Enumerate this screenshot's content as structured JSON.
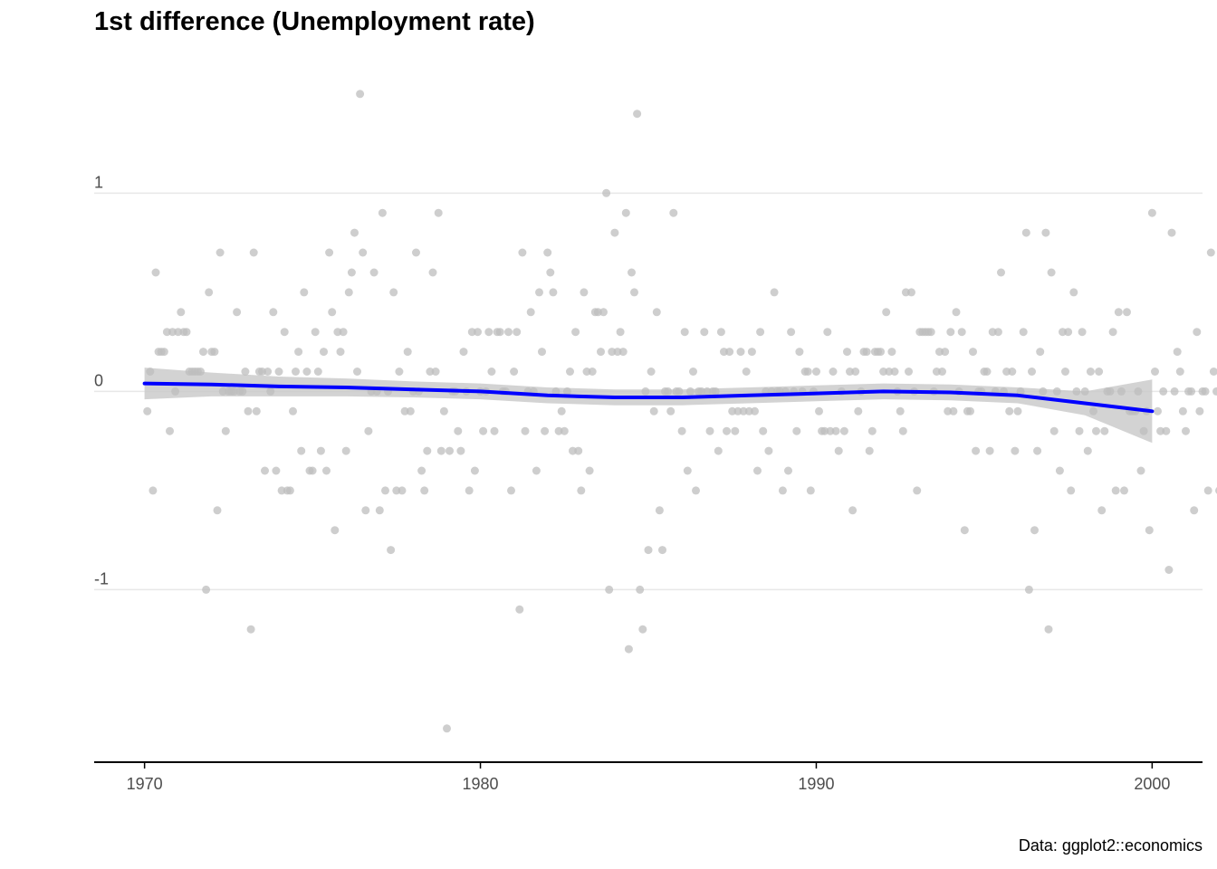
{
  "chart_data": {
    "type": "scatter",
    "title": "1st difference (Unemployment rate)",
    "caption": "Data: ggplot2::economics",
    "xlabel": "",
    "ylabel": "",
    "xlim": [
      1968.5,
      2001.5
    ],
    "ylim": [
      -1.87,
      1.7
    ],
    "x_ticks": [
      1970,
      1980,
      1990,
      2000
    ],
    "y_ticks": [
      -1,
      0,
      1
    ],
    "grid": "horizontal major only",
    "colors": {
      "points": "#bebebe",
      "smooth": "#0000ff",
      "ribbon": "#c8c8c8",
      "grid": "#e8e8e8",
      "axis": "#000000"
    },
    "points_start": 1970.0833,
    "points_step": 0.0833333,
    "points": [
      -0.1,
      0.1,
      -0.5,
      0.6,
      0.2,
      0.2,
      0.2,
      0.3,
      -0.2,
      0.3,
      0,
      0.3,
      0.4,
      0.3,
      0.3,
      0.1,
      0.1,
      0.1,
      0.1,
      0.1,
      0.2,
      -1,
      0.5,
      0.2,
      0.2,
      -0.6,
      0.7,
      0,
      -0.2,
      0,
      0,
      0,
      0.4,
      0,
      0,
      0.1,
      -0.1,
      -1.2,
      0.7,
      -0.1,
      0.1,
      0.1,
      -0.4,
      0.1,
      0,
      0.4,
      -0.4,
      0.1,
      -0.5,
      0.3,
      -0.5,
      -0.5,
      -0.1,
      0.1,
      0.2,
      -0.3,
      0.5,
      0.1,
      -0.4,
      -0.4,
      0.3,
      0.1,
      -0.3,
      0.2,
      -0.4,
      0.7,
      0.4,
      -0.7,
      0.3,
      0.2,
      0.3,
      -0.3,
      0.5,
      0.6,
      0.8,
      0.1,
      1.5,
      0.7,
      -0.6,
      -0.2,
      0,
      0.6,
      0,
      -0.6,
      0.9,
      -0.5,
      0,
      -0.8,
      0.5,
      -0.5,
      0.1,
      -0.5,
      -0.1,
      0.2,
      -0.1,
      0,
      0.7,
      0,
      -0.4,
      -0.5,
      -0.3,
      0.1,
      0.6,
      0.1,
      0.9,
      -0.3,
      -0.1,
      -1.7,
      -0.3,
      0,
      0,
      -0.2,
      -0.3,
      0.2,
      0,
      -0.5,
      0.3,
      -0.4,
      0.3,
      0,
      -0.2,
      0,
      0.3,
      0.1,
      -0.2,
      0.3,
      0.3,
      0,
      0,
      0.3,
      -0.5,
      0.1,
      0.3,
      -1.1,
      0.7,
      -0.2,
      0,
      0.4,
      0,
      -0.4,
      0.5,
      0.2,
      -0.2,
      0.7,
      0.6,
      0.5,
      0,
      -0.2,
      -0.1,
      -0.2,
      0,
      0.1,
      -0.3,
      0.3,
      -0.3,
      -0.5,
      0.5,
      0.1,
      -0.4,
      0.1,
      0.4,
      0.4,
      0.2,
      0.4,
      1,
      -1,
      0.2,
      0.8,
      0.2,
      0.3,
      0.2,
      0.9,
      -1.3,
      0.6,
      0.5,
      1.4,
      -1,
      -1.2,
      0,
      -0.8,
      0.1,
      -0.1,
      0.4,
      -0.6,
      -0.8,
      0,
      0,
      -0.1,
      0.9,
      0,
      0,
      -0.2,
      0.3,
      -0.4,
      0,
      0.1,
      -0.5,
      0,
      0,
      0.3,
      0,
      -0.2,
      0,
      0,
      -0.3,
      0.3,
      0.2,
      -0.2,
      0.2,
      -0.1,
      -0.2,
      -0.1,
      0.2,
      -0.1,
      0.1,
      -0.1,
      0.2,
      -0.1,
      -0.4,
      0.3,
      -0.2,
      0,
      -0.3,
      0,
      0.5,
      0,
      0,
      -0.5,
      0,
      -0.4,
      0.3,
      0,
      -0.2,
      0.2,
      0,
      0.1,
      0.1,
      -0.5,
      0,
      0.1,
      -0.1,
      -0.2,
      -0.2,
      0.3,
      -0.2,
      0.1,
      -0.2,
      -0.3,
      0,
      -0.2,
      0.2,
      0.1,
      -0.6,
      0.1,
      -0.1,
      0,
      0.2,
      0.2,
      -0.3,
      -0.2,
      0.2,
      0.2,
      0.2,
      0.1,
      0.4,
      0.1,
      0.2,
      0.1,
      0,
      -0.1,
      -0.2,
      0.5,
      0.1,
      0.5,
      0,
      -0.5,
      0.3,
      0.3,
      0.3,
      0.3,
      0.3,
      0,
      0.1,
      0.2,
      0.1,
      0.2,
      -0.1,
      0.3,
      -0.1,
      0.4,
      0,
      0.3,
      -0.7,
      -0.1,
      -0.1,
      0.2,
      -0.3,
      0,
      0,
      0.1,
      0.1,
      -0.3,
      0.3,
      0,
      0.3,
      0.6,
      0,
      0.1,
      -0.1,
      0.1,
      -0.3,
      -0.1,
      0,
      0.3,
      0.8,
      -1,
      0.1,
      -0.7,
      -0.3,
      0.2,
      0,
      0.8,
      -1.2,
      0.6,
      -0.2,
      0,
      -0.4,
      0.3,
      0.1,
      0.3,
      -0.5,
      0.5,
      0,
      -0.2,
      0.3,
      0,
      -0.3,
      0.1,
      -0.1,
      -0.2,
      0.1,
      -0.6,
      -0.2,
      0,
      0,
      0.3,
      -0.5,
      0.4,
      0,
      -0.5,
      0.4,
      -0.1,
      -0.1,
      -0.1,
      0,
      -0.4,
      -0.2,
      -0.1,
      -0.7,
      0.9,
      0.1,
      -0.1,
      -0.2,
      0,
      -0.2,
      -0.9,
      0.8,
      0,
      0.2,
      0.1,
      -0.1,
      -0.2,
      0,
      0,
      -0.6,
      0.3,
      -0.1,
      0,
      0,
      -0.5,
      0.7,
      0.1,
      0,
      -0.5,
      0.1,
      0.1,
      -0.4
    ],
    "smooth": {
      "x": [
        1970,
        1972,
        1974,
        1976,
        1978,
        1980,
        1982,
        1984,
        1986,
        1988,
        1990,
        1992,
        1994,
        1996,
        1998,
        2000
      ],
      "y": [
        0.04,
        0.035,
        0.025,
        0.02,
        0.01,
        0.0,
        -0.02,
        -0.03,
        -0.03,
        -0.02,
        -0.01,
        0.0,
        -0.005,
        -0.02,
        -0.06,
        -0.1
      ],
      "ribbon_half_width": [
        0.08,
        0.06,
        0.05,
        0.045,
        0.04,
        0.04,
        0.04,
        0.04,
        0.04,
        0.04,
        0.04,
        0.04,
        0.04,
        0.04,
        0.06,
        0.16
      ]
    }
  }
}
